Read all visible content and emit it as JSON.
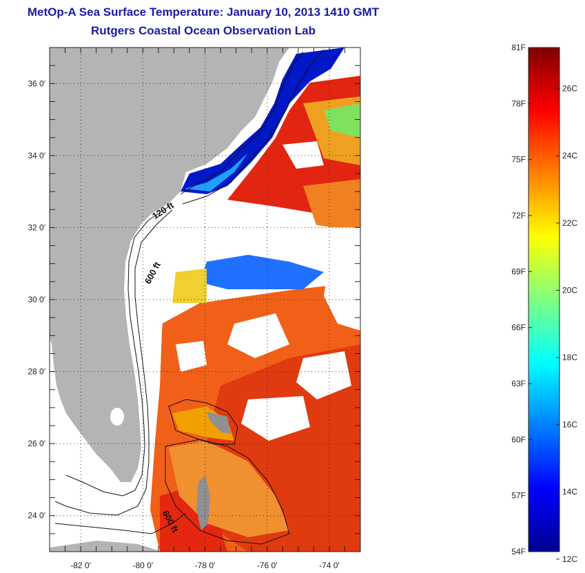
{
  "title": {
    "line1": "MetOp-A Sea Surface Temperature:  January 10, 2013 1410 GMT",
    "line2": "Rutgers Coastal Ocean Observation Lab"
  },
  "map": {
    "lon_range": [
      -83,
      -73
    ],
    "lat_range": [
      23,
      37
    ],
    "lon_ticks": [
      {
        "value": -82,
        "label": "-82 0'"
      },
      {
        "value": -80,
        "label": "-80 0'"
      },
      {
        "value": -78,
        "label": "-78 0'"
      },
      {
        "value": -76,
        "label": "-76 0'"
      },
      {
        "value": -74,
        "label": "-74 0'"
      }
    ],
    "lat_ticks": [
      {
        "value": 24,
        "label": "24 0'"
      },
      {
        "value": 26,
        "label": "26 0'"
      },
      {
        "value": 28,
        "label": "28 0'"
      },
      {
        "value": 30,
        "label": "30 0'"
      },
      {
        "value": 32,
        "label": "32 0'"
      },
      {
        "value": 34,
        "label": "34 0'"
      },
      {
        "value": 36,
        "label": "36 0'"
      }
    ],
    "grid": "dotted",
    "contour_labels": [
      {
        "text": "120 ft",
        "lon": -79.3,
        "lat": 32.4,
        "angle": -33
      },
      {
        "text": "600 ft",
        "lon": -79.6,
        "lat": 30.7,
        "angle": -62
      },
      {
        "text": "600 ft",
        "lon": -79.2,
        "lat": 23.8,
        "angle": 62
      }
    ],
    "land_color": "#b4b4b4",
    "cloud_color": "#ffffff"
  },
  "colorbar": {
    "range_f": [
      54,
      81
    ],
    "fahrenheit_labels": [
      {
        "value": 81,
        "label": "81F"
      },
      {
        "value": 78,
        "label": "78F"
      },
      {
        "value": 75,
        "label": "75F"
      },
      {
        "value": 72,
        "label": "72F"
      },
      {
        "value": 69,
        "label": "69F"
      },
      {
        "value": 66,
        "label": "66F"
      },
      {
        "value": 63,
        "label": "63F"
      },
      {
        "value": 60,
        "label": "60F"
      },
      {
        "value": 57,
        "label": "57F"
      },
      {
        "value": 54,
        "label": "54F"
      }
    ],
    "celsius_labels": [
      {
        "value": 26,
        "label": "26C"
      },
      {
        "value": 24,
        "label": "24C"
      },
      {
        "value": 22,
        "label": "22C"
      },
      {
        "value": 20,
        "label": "20C"
      },
      {
        "value": 18,
        "label": "18C"
      },
      {
        "value": 16,
        "label": "16C"
      },
      {
        "value": 14,
        "label": "14C"
      },
      {
        "value": 12,
        "label": "12C"
      }
    ],
    "palette": [
      "#00008f",
      "#0000ff",
      "#0080ff",
      "#00ffff",
      "#80ff80",
      "#ffff00",
      "#ff8000",
      "#ff0000",
      "#800000"
    ]
  }
}
